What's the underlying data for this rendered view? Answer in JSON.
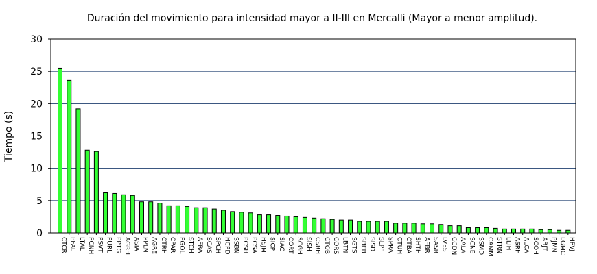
{
  "chart_data": {
    "type": "bar",
    "title": "Duración del movimiento para intensidad mayor a II-III en Mercalli (Mayor a menor amplitud).",
    "xlabel": "",
    "ylabel": "Tiempo (s)",
    "ylim": [
      0,
      30
    ],
    "yticks": [
      "0",
      "5",
      "10",
      "15",
      "20",
      "25",
      "30"
    ],
    "grid": "horizontal",
    "colors": {
      "bar_fill": "#33ff33",
      "bar_stroke": "#000000",
      "grid": "#1f3f6f",
      "axis": "#000000"
    },
    "categories": [
      "CTCR",
      "PFAL",
      "LTAL",
      "PCNH",
      "PSVT",
      "PURL",
      "PPTG",
      "AGRH",
      "ASIA",
      "PPLN",
      "AGRE",
      "CTRH",
      "CPAR",
      "PGOL",
      "STCH",
      "AFRA",
      "SCAS",
      "SPCH",
      "HCPD",
      "SSBN",
      "PCSH",
      "PCSA",
      "HSJM",
      "SICP",
      "SIAC",
      "CORT",
      "SCGH",
      "SISH",
      "CSRH",
      "CTOB",
      "CORS",
      "LBTN",
      "SGTS",
      "SBEB",
      "SISD",
      "SLPF",
      "SPRA",
      "CTUH",
      "CTBA",
      "SHTH",
      "AFBR",
      "SASR",
      "LVES",
      "CCDN",
      "AALA",
      "SCNE",
      "SSMD",
      "CAMM",
      "STRN",
      "LLIH",
      "ASRH",
      "ALCA",
      "SCOH",
      "ABJT",
      "PJMN",
      "LGMC",
      "HPVJ"
    ],
    "values": [
      25.5,
      23.6,
      19.2,
      12.8,
      12.6,
      6.2,
      6.1,
      5.9,
      5.8,
      4.8,
      4.8,
      4.6,
      4.2,
      4.2,
      4.1,
      3.9,
      3.9,
      3.7,
      3.5,
      3.3,
      3.2,
      3.1,
      2.8,
      2.8,
      2.7,
      2.6,
      2.5,
      2.4,
      2.3,
      2.2,
      2.1,
      2.0,
      2.0,
      1.8,
      1.8,
      1.8,
      1.8,
      1.5,
      1.5,
      1.5,
      1.4,
      1.4,
      1.3,
      1.1,
      1.1,
      0.8,
      0.8,
      0.8,
      0.7,
      0.6,
      0.6,
      0.6,
      0.6,
      0.5,
      0.5,
      0.4,
      0.4
    ]
  }
}
